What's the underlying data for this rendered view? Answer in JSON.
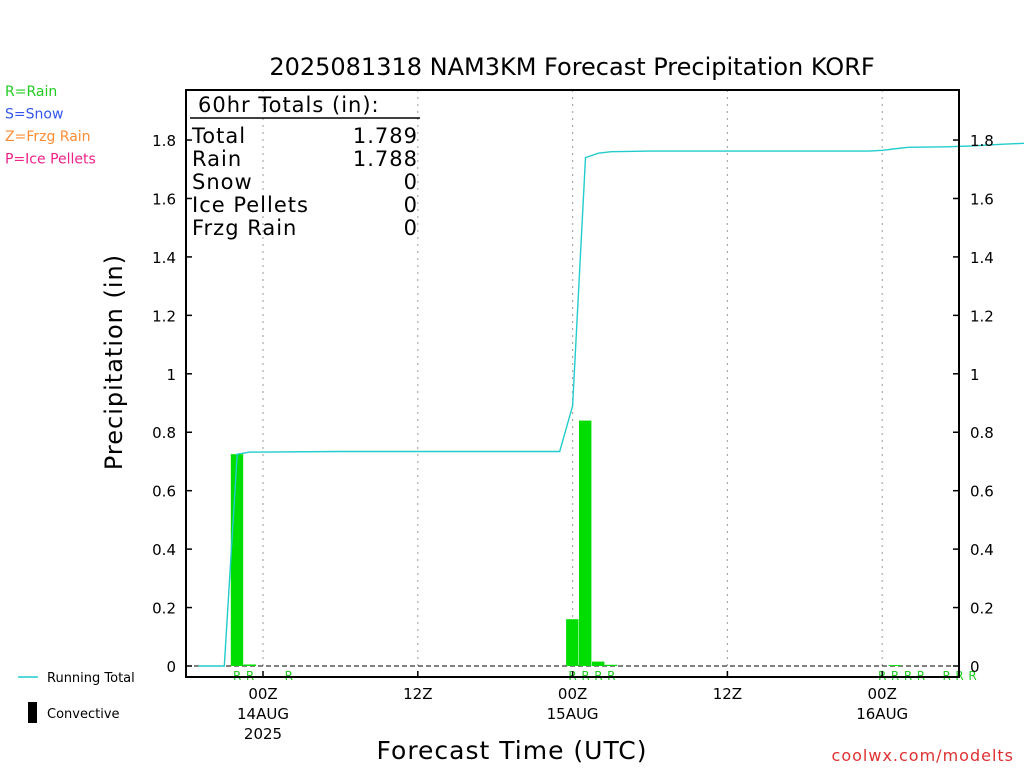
{
  "chart_data": {
    "type": "bar",
    "title": "2025081318 NAM3KM Forecast Precipitation KORF",
    "xlabel": "Forecast Time (UTC)",
    "ylabel": "Precipitation (in)",
    "ylim": [
      0,
      1.98
    ],
    "xlim_hours_from_18z_aug13": [
      -5,
      60
    ],
    "y_ticks": [
      "0",
      "0.2",
      "0.4",
      "0.6",
      "0.8",
      "1",
      "1.2",
      "1.4",
      "1.6",
      "1.8"
    ],
    "x_ticks": [
      {
        "hour": 0,
        "label": "00Z",
        "sub1": "14AUG",
        "sub2": "2025"
      },
      {
        "hour": 12,
        "label": "12Z",
        "sub1": "",
        "sub2": ""
      },
      {
        "hour": 24,
        "label": "00Z",
        "sub1": "15AUG",
        "sub2": ""
      },
      {
        "hour": 36,
        "label": "12Z",
        "sub1": "",
        "sub2": ""
      },
      {
        "hour": 48,
        "label": "00Z",
        "sub1": "16AUG",
        "sub2": ""
      }
    ],
    "totals_box": {
      "header": "60hr Totals (in):",
      "rows": [
        {
          "label": "Total",
          "value": "1.789"
        },
        {
          "label": "Rain",
          "value": "1.788"
        },
        {
          "label": "Snow",
          "value": "0"
        },
        {
          "label": "Ice Pellets",
          "value": "0"
        },
        {
          "label": "Frzg Rain",
          "value": "0"
        }
      ]
    },
    "ptype_legend": [
      {
        "text": "R=Rain",
        "color": "#22cc22"
      },
      {
        "text": "S=Snow",
        "color": "#3355ee"
      },
      {
        "text": "Z=Frzg Rain",
        "color": "#ff8c33"
      },
      {
        "text": "P=Ice Pellets",
        "color": "#ee2288"
      }
    ],
    "bottom_legend": {
      "running_total": "Running Total",
      "convective": "Convective"
    },
    "bars": [
      {
        "hour": -2,
        "value": 0.725
      },
      {
        "hour": -1,
        "value": 0.005
      },
      {
        "hour": 24,
        "value": 0.16
      },
      {
        "hour": 25,
        "value": 0.84
      },
      {
        "hour": 26,
        "value": 0.015
      },
      {
        "hour": 27,
        "value": 0.004
      },
      {
        "hour": 49,
        "value": 0.003
      }
    ],
    "running_total": [
      {
        "hour": -5,
        "value": 0
      },
      {
        "hour": -3,
        "value": 0
      },
      {
        "hour": -2,
        "value": 0.725
      },
      {
        "hour": -1,
        "value": 0.732
      },
      {
        "hour": 0,
        "value": 0.732
      },
      {
        "hour": 6,
        "value": 0.734
      },
      {
        "hour": 23,
        "value": 0.734
      },
      {
        "hour": 24,
        "value": 0.89
      },
      {
        "hour": 25,
        "value": 1.74
      },
      {
        "hour": 26,
        "value": 1.755
      },
      {
        "hour": 27,
        "value": 1.76
      },
      {
        "hour": 30,
        "value": 1.762
      },
      {
        "hour": 47,
        "value": 1.762
      },
      {
        "hour": 48,
        "value": 1.765
      },
      {
        "hour": 50,
        "value": 1.775
      },
      {
        "hour": 53,
        "value": 1.777
      },
      {
        "hour": 55,
        "value": 1.78
      },
      {
        "hour": 57,
        "value": 1.785
      },
      {
        "hour": 59,
        "value": 1.789
      }
    ],
    "ptype_markers": [
      {
        "hour": -2,
        "text": "R"
      },
      {
        "hour": -1,
        "text": "R"
      },
      {
        "hour": 2,
        "text": "R"
      },
      {
        "hour": 24,
        "text": "R"
      },
      {
        "hour": 25,
        "text": "R"
      },
      {
        "hour": 26,
        "text": "R"
      },
      {
        "hour": 27,
        "text": "R"
      },
      {
        "hour": 48,
        "text": "R"
      },
      {
        "hour": 49,
        "text": "R"
      },
      {
        "hour": 50,
        "text": "R"
      },
      {
        "hour": 51,
        "text": "R"
      },
      {
        "hour": 53,
        "text": "R"
      },
      {
        "hour": 54,
        "text": "R"
      },
      {
        "hour": 55,
        "text": "R"
      }
    ],
    "colors": {
      "bar": "#00dd00",
      "running_total": "#22cccc",
      "marker": "#22cc22",
      "grid": "#aaaaaa",
      "credit": "#e03030"
    },
    "credit": "coolwx.com/modelts"
  }
}
